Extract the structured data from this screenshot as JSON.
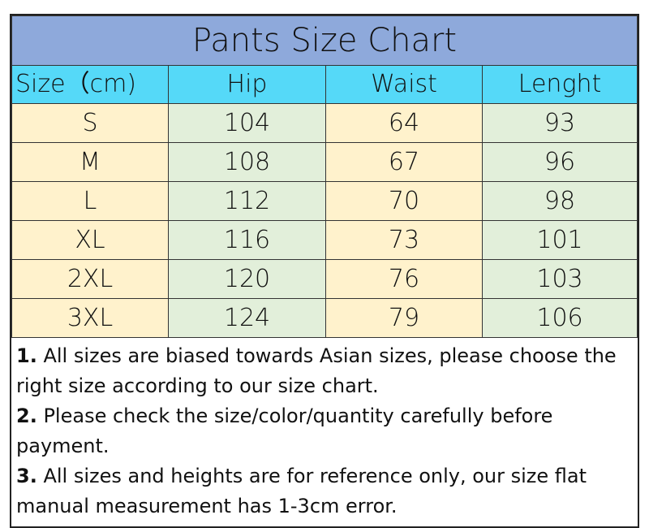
{
  "title": "Pants Size Chart",
  "headers": [
    "Size（cm)",
    "Hip",
    "Waist",
    "Lenght"
  ],
  "rows": [
    [
      "S",
      "104",
      "64",
      "93"
    ],
    [
      "M",
      "108",
      "67",
      "96"
    ],
    [
      "L",
      "112",
      "70",
      "98"
    ],
    [
      "XL",
      "116",
      "73",
      "101"
    ],
    [
      "2XL",
      "120",
      "76",
      "103"
    ],
    [
      "3XL",
      "124",
      "79",
      "106"
    ]
  ],
  "notes": [
    {
      "num": "1.",
      "text": " All sizes are biased towards Asian sizes, please choose the right size according to our size chart."
    },
    {
      "num": "2.",
      "text": " Please check the size/color/quantity carefully before payment."
    },
    {
      "num": "3.",
      "text": " All sizes and heights are for reference only, our size flat manual measurement has 1-3cm error."
    }
  ],
  "colors": {
    "title_bg": "#8EA9DB",
    "header_bg": "#55D9F8",
    "yellow_col": "#FFF2CC",
    "green_col": "#E2EFDA"
  }
}
